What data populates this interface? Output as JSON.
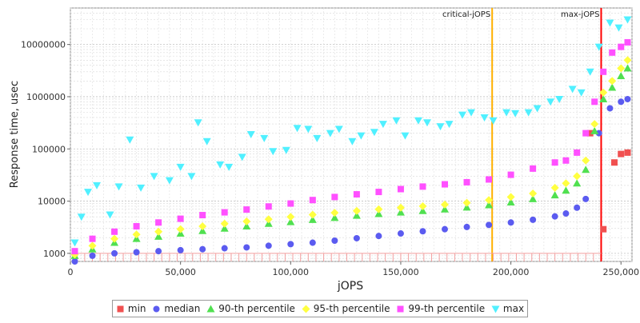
{
  "chart_data": {
    "type": "scatter",
    "xlabel": "jOPS",
    "ylabel": "Response time, usec",
    "xlim": [
      0,
      255000
    ],
    "ylim": [
      700,
      50000000
    ],
    "yscale": "log",
    "grid": true,
    "legend_position": "bottom",
    "x_ticks": [
      0,
      50000,
      100000,
      150000,
      200000,
      250000
    ],
    "x_tick_labels": [
      "0",
      "50,000",
      "100,000",
      "150,000",
      "200,000",
      "250,000"
    ],
    "y_ticks": [
      1000,
      10000,
      100000,
      1000000,
      10000000
    ],
    "y_tick_labels": [
      "1000",
      "10000",
      "100000",
      "1000000",
      "10000000"
    ],
    "annotations": [
      {
        "label": "critical-jOPS",
        "x": 191500,
        "color": "#ffb000"
      },
      {
        "label": "max-jOPS",
        "x": 241000,
        "color": "#ff0000"
      }
    ],
    "series": [
      {
        "name": "min",
        "color": "#f05050",
        "marker": "square",
        "x": [
          236000,
          242000,
          247000,
          250000,
          253000
        ],
        "values": [
          200000,
          2900,
          55000,
          80000,
          85000
        ]
      },
      {
        "name": "median",
        "color": "#5b5bf0",
        "marker": "circle",
        "x": [
          2000,
          10000,
          20000,
          30000,
          40000,
          50000,
          60000,
          70000,
          80000,
          90000,
          100000,
          110000,
          120000,
          130000,
          140000,
          150000,
          160000,
          170000,
          180000,
          190000,
          200000,
          210000,
          220000,
          225000,
          230000,
          234000,
          240000,
          245000,
          250000,
          253000
        ],
        "values": [
          700,
          900,
          1000,
          1050,
          1100,
          1150,
          1200,
          1250,
          1300,
          1400,
          1500,
          1600,
          1750,
          1950,
          2150,
          2400,
          2650,
          2900,
          3200,
          3500,
          3900,
          4400,
          5100,
          5800,
          7500,
          11000,
          200000,
          600000,
          800000,
          900000
        ]
      },
      {
        "name": "90-th percentile",
        "color": "#50e050",
        "marker": "triangle-up",
        "x": [
          2000,
          10000,
          20000,
          30000,
          40000,
          50000,
          60000,
          70000,
          80000,
          90000,
          100000,
          110000,
          120000,
          130000,
          140000,
          150000,
          160000,
          170000,
          180000,
          190000,
          200000,
          210000,
          220000,
          225000,
          230000,
          234000,
          238000,
          242000,
          246000,
          250000,
          253000
        ],
        "values": [
          900,
          1200,
          1600,
          1900,
          2100,
          2400,
          2700,
          3000,
          3300,
          3700,
          4000,
          4400,
          4800,
          5300,
          5700,
          6100,
          6500,
          7000,
          7600,
          8400,
          9500,
          11000,
          13000,
          16000,
          22000,
          40000,
          220000,
          900000,
          1500000,
          2500000,
          3500000
        ]
      },
      {
        "name": "95-th percentile",
        "color": "#ffff40",
        "marker": "diamond",
        "x": [
          2000,
          10000,
          20000,
          30000,
          40000,
          50000,
          60000,
          70000,
          80000,
          90000,
          100000,
          110000,
          120000,
          130000,
          140000,
          150000,
          160000,
          170000,
          180000,
          190000,
          200000,
          210000,
          220000,
          225000,
          230000,
          234000,
          238000,
          242000,
          246000,
          250000,
          253000
        ],
        "values": [
          950,
          1400,
          1900,
          2300,
          2600,
          2900,
          3300,
          3700,
          4100,
          4500,
          5000,
          5500,
          6000,
          6500,
          7000,
          7500,
          8000,
          8600,
          9300,
          10500,
          12000,
          14000,
          18000,
          22000,
          30000,
          60000,
          300000,
          1200000,
          2000000,
          3500000,
          5000000
        ]
      },
      {
        "name": "99-th percentile",
        "color": "#ff50ff",
        "marker": "square",
        "x": [
          2000,
          10000,
          20000,
          30000,
          40000,
          50000,
          60000,
          70000,
          80000,
          90000,
          100000,
          110000,
          120000,
          130000,
          140000,
          150000,
          160000,
          170000,
          180000,
          190000,
          200000,
          210000,
          220000,
          225000,
          230000,
          234000,
          238000,
          242000,
          246000,
          250000,
          253000
        ],
        "values": [
          1100,
          1900,
          2600,
          3300,
          3900,
          4600,
          5400,
          6100,
          6900,
          7900,
          9000,
          10500,
          12000,
          13500,
          15000,
          17000,
          19000,
          21000,
          23000,
          26000,
          32000,
          42000,
          55000,
          60000,
          85000,
          200000,
          800000,
          3000000,
          7000000,
          9000000,
          11000000
        ]
      },
      {
        "name": "max",
        "color": "#50f0ff",
        "marker": "triangle-down",
        "x": [
          2000,
          5000,
          8000,
          12000,
          18000,
          22000,
          27000,
          32000,
          38000,
          45000,
          50000,
          55000,
          58000,
          62000,
          68000,
          72000,
          78000,
          82000,
          88000,
          92000,
          98000,
          103000,
          108000,
          112000,
          118000,
          122000,
          128000,
          132000,
          138000,
          142000,
          148000,
          152000,
          158000,
          162000,
          168000,
          172000,
          178000,
          182000,
          188000,
          192000,
          198000,
          202000,
          208000,
          212000,
          218000,
          222000,
          228000,
          232000,
          236000,
          240000,
          245000,
          249000,
          253000
        ],
        "values": [
          1600,
          5000,
          15000,
          20000,
          5500,
          19000,
          150000,
          18000,
          30000,
          25000,
          45000,
          30000,
          320000,
          140000,
          50000,
          45000,
          70000,
          190000,
          160000,
          90000,
          95000,
          250000,
          240000,
          160000,
          200000,
          240000,
          140000,
          180000,
          210000,
          300000,
          350000,
          180000,
          350000,
          320000,
          270000,
          300000,
          450000,
          500000,
          400000,
          350000,
          500000,
          480000,
          500000,
          600000,
          800000,
          900000,
          1400000,
          1200000,
          3000000,
          9000000,
          26000000,
          21000000,
          30000000
        ]
      }
    ]
  }
}
